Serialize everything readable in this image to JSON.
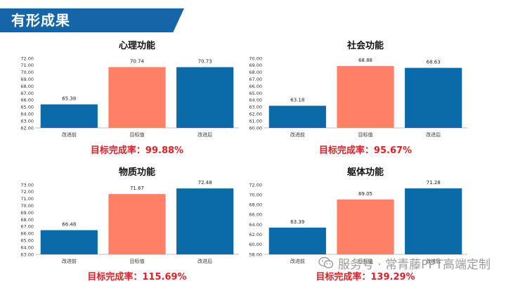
{
  "header": {
    "title": "有形成果"
  },
  "colors": {
    "header": "#1565A8",
    "before": "#0A6BA8",
    "target": "#FF7F67",
    "after": "#0A6BA8",
    "rate": "#E31E24"
  },
  "watermark": {
    "text": "服务号 · 常青藤PPT高端定制",
    "icon": "wechat-icon"
  },
  "chart_data": [
    {
      "type": "bar",
      "title": "心理功能",
      "categories": [
        "改进前",
        "目标值",
        "改进后"
      ],
      "values": [
        65.38,
        70.74,
        70.73
      ],
      "value_labels": [
        "65.38",
        "70.74",
        "70.73"
      ],
      "ylim": [
        62,
        72
      ],
      "yticks": [
        "62.00",
        "63.00",
        "64.00",
        "65.00",
        "66.00",
        "67.00",
        "68.00",
        "69.00",
        "70.00",
        "71.00",
        "72.00"
      ],
      "rate": "目标完成率：99.88%"
    },
    {
      "type": "bar",
      "title": "社会功能",
      "categories": [
        "改进前",
        "目标值",
        "改进后"
      ],
      "values": [
        63.18,
        68.88,
        68.63
      ],
      "value_labels": [
        "63.18",
        "68.88",
        "68.63"
      ],
      "ylim": [
        60,
        70
      ],
      "yticks": [
        "60.00",
        "61.00",
        "62.00",
        "63.00",
        "64.00",
        "65.00",
        "66.00",
        "67.00",
        "68.00",
        "69.00",
        "70.00"
      ],
      "rate": "目标完成率：95.67%"
    },
    {
      "type": "bar",
      "title": "物质功能",
      "categories": [
        "改进前",
        "目标值",
        "改进后"
      ],
      "values": [
        66.48,
        71.67,
        72.48
      ],
      "value_labels": [
        "66.48",
        "71.67",
        "72.48"
      ],
      "ylim": [
        63,
        73
      ],
      "yticks": [
        "63.00",
        "64.00",
        "65.00",
        "66.00",
        "67.00",
        "68.00",
        "69.00",
        "70.00",
        "71.00",
        "72.00",
        "73.00"
      ],
      "rate": "目标完成率：115.69%"
    },
    {
      "type": "bar",
      "title": "躯体功能",
      "categories": [
        "改进前",
        "目标值",
        "改进后"
      ],
      "values": [
        63.39,
        69.05,
        71.28
      ],
      "value_labels": [
        "63.39",
        "69.05",
        "71.28"
      ],
      "ylim": [
        58,
        72
      ],
      "yticks": [
        "58.00",
        "60.00",
        "62.00",
        "64.00",
        "66.00",
        "68.00",
        "70.00",
        "72.00"
      ],
      "rate": "目标完成率：139.29%"
    }
  ]
}
